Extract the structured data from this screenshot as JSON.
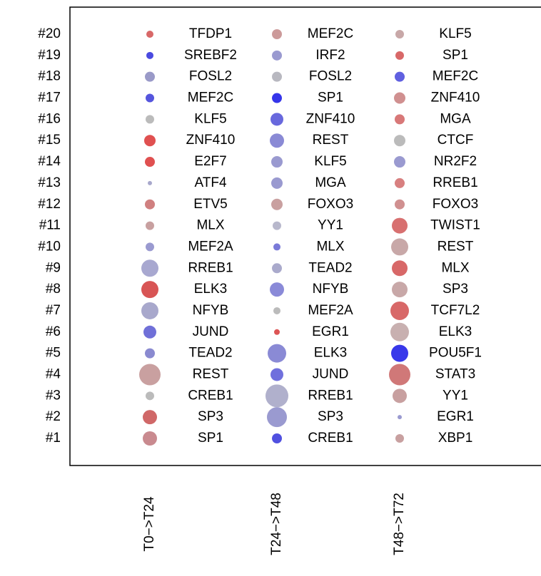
{
  "chart_data": {
    "type": "dotplot",
    "categories": [
      "#1",
      "#2",
      "#3",
      "#4",
      "#5",
      "#6",
      "#7",
      "#8",
      "#9",
      "#10",
      "#11",
      "#12",
      "#13",
      "#14",
      "#15",
      "#16",
      "#17",
      "#18",
      "#19",
      "#20"
    ],
    "series": [
      {
        "name": "T0−>T24",
        "labels": [
          "SP1",
          "SP3",
          "CREB1",
          "REST",
          "TEAD2",
          "JUND",
          "NFYB",
          "ELK3",
          "RREB1",
          "MEF2A",
          "MLX",
          "ETV5",
          "ATF4",
          "E2F7",
          "ZNF410",
          "KLF5",
          "MEF2C",
          "FOSL2",
          "SREBF2",
          "TFDP1"
        ],
        "values": [
          10,
          10,
          6,
          15,
          7,
          9,
          12,
          12,
          12,
          6,
          6,
          7,
          3,
          7,
          8,
          6,
          6,
          7,
          5,
          5
        ],
        "colors": [
          "#c98a8f",
          "#d06868",
          "#bbbbbb",
          "#c9a0a0",
          "#8a8ad0",
          "#7070d8",
          "#a8a8cc",
          "#d85555",
          "#a8a8d0",
          "#9a9ad0",
          "#c8a0a0",
          "#d08080",
          "#a8a8cc",
          "#e05050",
          "#e05050",
          "#bbbbbb",
          "#5555dd",
          "#9a9ac8",
          "#4a4ae0",
          "#d86868"
        ]
      },
      {
        "name": "T24−>T48",
        "labels": [
          "CREB1",
          "SP3",
          "RREB1",
          "JUND",
          "ELK3",
          "EGR1",
          "MEF2A",
          "NFYB",
          "TEAD2",
          "MLX",
          "YY1",
          "FOXO3",
          "MGA",
          "KLF5",
          "REST",
          "ZNF410",
          "SP1",
          "FOSL2",
          "IRF2",
          "MEF2C"
        ],
        "values": [
          7,
          14,
          16,
          9,
          13,
          4,
          5,
          10,
          7,
          5,
          6,
          8,
          8,
          8,
          10,
          9,
          7,
          7,
          7,
          7
        ],
        "colors": [
          "#5050e0",
          "#9a9ad0",
          "#b0b0cc",
          "#7070dd",
          "#8a8ad5",
          "#dd5555",
          "#bbbbbb",
          "#8a8ad8",
          "#aaaacc",
          "#7a7ad8",
          "#b8b8cc",
          "#c9a0a0",
          "#9a9ad0",
          "#9a9ad0",
          "#8a8ad5",
          "#6868dd",
          "#3535ea",
          "#b8b8c0",
          "#9a9ad0",
          "#cc9a9a"
        ]
      },
      {
        "name": "T48−>T72",
        "labels": [
          "XBP1",
          "EGR1",
          "YY1",
          "STAT3",
          "POU5F1",
          "ELK3",
          "TCF7L2",
          "SP3",
          "MLX",
          "REST",
          "TWIST1",
          "FOXO3",
          "RREB1",
          "NR2F2",
          "CTCF",
          "MGA",
          "ZNF410",
          "MEF2C",
          "SP1",
          "KLF5"
        ],
        "values": [
          6,
          3,
          10,
          15,
          12,
          13,
          13,
          11,
          11,
          12,
          11,
          7,
          7,
          8,
          8,
          7,
          8,
          7,
          6,
          6
        ],
        "colors": [
          "#c8a0a0",
          "#9a9ad0",
          "#c8a0a0",
          "#d07878",
          "#3838ea",
          "#c8b0b0",
          "#d86868",
          "#c8a8a8",
          "#d86868",
          "#c8a8a8",
          "#d87070",
          "#d09090",
          "#d88080",
          "#9a9ad0",
          "#bbbbbb",
          "#d87878",
          "#d09090",
          "#6060e0",
          "#d86868",
          "#c8a8a8"
        ]
      }
    ]
  }
}
